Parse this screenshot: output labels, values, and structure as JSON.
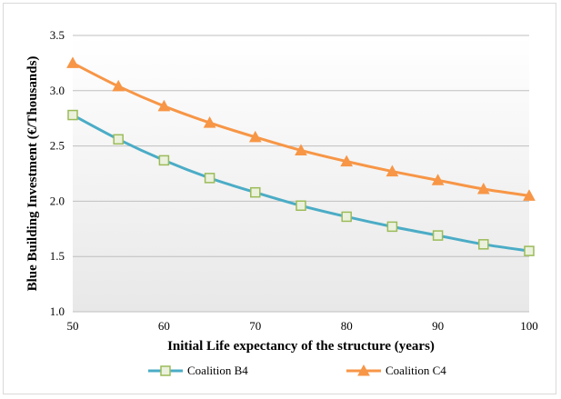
{
  "chart_data": {
    "type": "line",
    "xlabel": "Initial Life expectancy of the structure (years)",
    "ylabel": "Blue Building Investment (€/Thousands)",
    "xlim": [
      50,
      100
    ],
    "ylim": [
      1.0,
      3.5
    ],
    "xticks": [
      "50",
      "60",
      "70",
      "80",
      "90",
      "100"
    ],
    "yticks": [
      "1.0",
      "1.5",
      "2.0",
      "2.5",
      "3.0",
      "3.5"
    ],
    "grid": "horizontal",
    "legend_position": "bottom",
    "x": [
      50,
      55,
      60,
      65,
      70,
      75,
      80,
      85,
      90,
      95,
      100
    ],
    "series": [
      {
        "name": "Coalition B4",
        "color": "#4bacc6",
        "marker": "square",
        "marker_fill": "#ebf1dd",
        "marker_edge": "#9bbb59",
        "values": [
          2.78,
          2.56,
          2.37,
          2.21,
          2.08,
          1.96,
          1.86,
          1.77,
          1.69,
          1.61,
          1.55
        ]
      },
      {
        "name": "Coalition C4",
        "color": "#f79646",
        "marker": "triangle",
        "marker_fill": "#f79646",
        "marker_edge": "#f79646",
        "values": [
          3.25,
          3.04,
          2.86,
          2.71,
          2.58,
          2.46,
          2.36,
          2.27,
          2.19,
          2.11,
          2.05
        ]
      }
    ]
  }
}
